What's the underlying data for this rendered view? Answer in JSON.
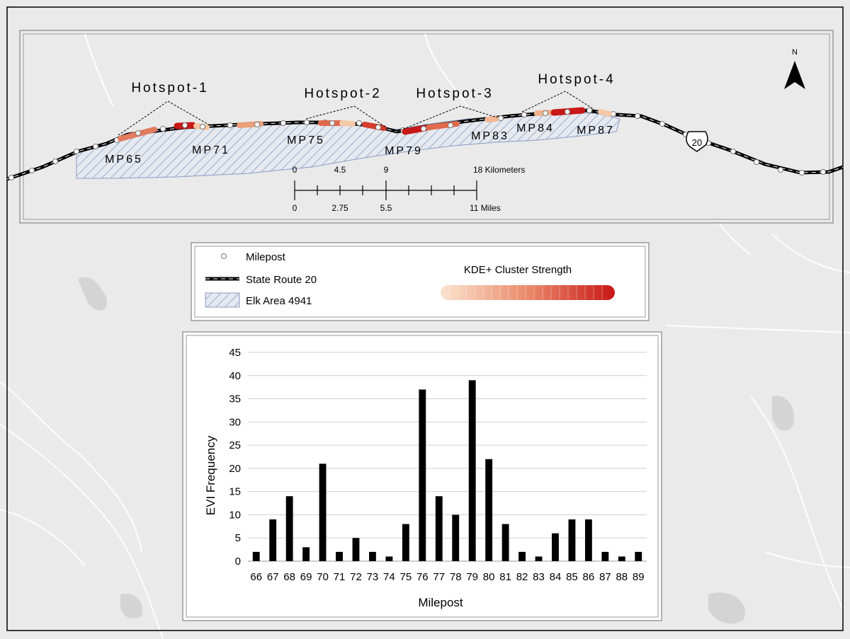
{
  "map": {
    "hotspots": [
      "Hotspot-1",
      "Hotspot-2",
      "Hotspot-3",
      "Hotspot-4"
    ],
    "mileposts": [
      "MP65",
      "MP71",
      "MP75",
      "MP79",
      "MP83",
      "MP84",
      "MP87"
    ],
    "route_shield": "20",
    "north": "N"
  },
  "scalebar": {
    "km_ticks": [
      "0",
      "4.5",
      "9",
      "18 Kilometers"
    ],
    "mile_ticks": [
      "0",
      "2.75",
      "5.5",
      "11 Miles"
    ]
  },
  "legend": {
    "milepost": "Milepost",
    "route": "State Route 20",
    "area": "Elk Area 4941",
    "kde_title": "KDE+ Cluster Strength"
  },
  "colors": {
    "kde_low": "#fbe3cf",
    "kde_mid": "#ea8a6a",
    "kde_high": "#c81717",
    "hatch": "#8a9dc4",
    "area_fill": "#e6e9ef"
  },
  "chart_data": {
    "type": "bar",
    "categories": [
      "66",
      "67",
      "68",
      "69",
      "70",
      "71",
      "72",
      "73",
      "74",
      "75",
      "76",
      "77",
      "78",
      "79",
      "80",
      "81",
      "82",
      "83",
      "84",
      "85",
      "86",
      "87",
      "88",
      "89"
    ],
    "values": [
      2,
      9,
      14,
      3,
      21,
      2,
      5,
      2,
      1,
      8,
      37,
      14,
      10,
      39,
      22,
      8,
      2,
      1,
      6,
      9,
      9,
      2,
      1,
      2
    ],
    "xlabel": "Milepost",
    "ylabel": "EVI Frequency",
    "ylim": [
      0,
      45
    ],
    "yticks": [
      0,
      5,
      10,
      15,
      20,
      25,
      30,
      35,
      40,
      45
    ],
    "grid": true
  }
}
